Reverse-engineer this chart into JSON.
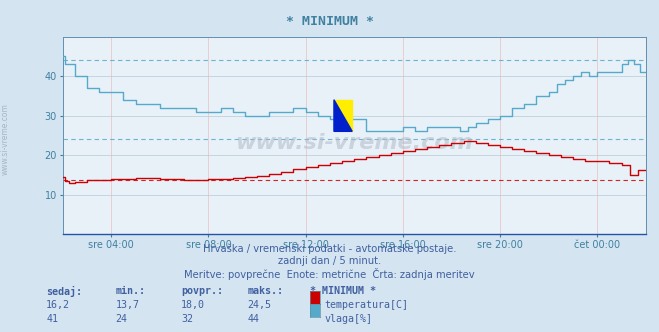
{
  "title": "* MINIMUM *",
  "bg_color": "#d4e4f0",
  "plot_bg_color": "#e8f0f8",
  "grid_color_h": "#b8ccd8",
  "grid_color_v": "#e8c0c0",
  "xlabel_color": "#4080a0",
  "title_color": "#4080a0",
  "text_color": "#4060a0",
  "watermark": "www.si-vreme.com",
  "subtitle1": "Hrvaška / vremenski podatki - avtomatske postaje.",
  "subtitle2": "zadnji dan / 5 minut.",
  "subtitle3": "Meritve: povprečne  Enote: metrične  Črta: zadnja meritev",
  "legend_title": "* MINIMUM *",
  "legend_items": [
    {
      "label": "temperatura[C]",
      "color": "#cc0000"
    },
    {
      "label": "vlaga[%]",
      "color": "#55aacc"
    }
  ],
  "table_headers": [
    "sedaj:",
    "min.:",
    "povpr.:",
    "maks.:"
  ],
  "table_rows": [
    [
      "16,2",
      "13,7",
      "18,0",
      "24,5"
    ],
    [
      "41",
      "24",
      "32",
      "44"
    ]
  ],
  "xmin": 0,
  "xmax": 288,
  "ymin": 0,
  "ymax": 50,
  "yticks": [
    10,
    20,
    30,
    40
  ],
  "xtick_positions": [
    24,
    72,
    120,
    168,
    216,
    264
  ],
  "xtick_labels": [
    "sre 04:00",
    "sre 08:00",
    "sre 12:00",
    "sre 16:00",
    "sre 20:00",
    "čet 00:00"
  ],
  "temp_min_line": 13.7,
  "hum_min_line": 24,
  "hum_max_line": 44,
  "temp_color": "#cc0000",
  "hum_color": "#55aacc"
}
